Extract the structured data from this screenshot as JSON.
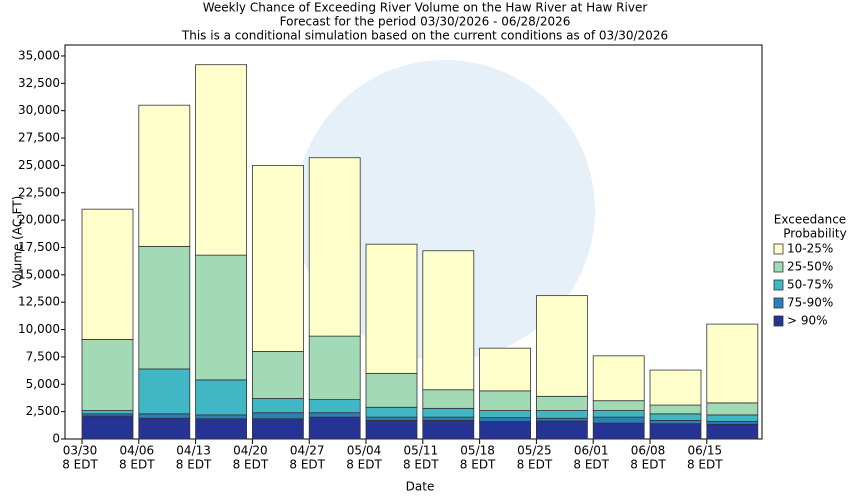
{
  "chart_data": {
    "type": "stacked_bar",
    "title": "Weekly Chance of Exceeding River Volume on the Haw River at Haw River",
    "subtitle": "Forecast for the period 03/30/2026 - 06/28/2026",
    "note": "This is a conditional simulation based on the current conditions as of 03/30/2026",
    "y_label": "Volume (AC-FT)",
    "x_label": "Date",
    "categories": [
      "03/30",
      "04/06",
      "04/13",
      "04/20",
      "04/27",
      "05/04",
      "05/11",
      "05/18",
      "05/25",
      "06/01",
      "06/08",
      "06/15"
    ],
    "category_sublabel": "8 EDT",
    "legend_title": [
      "Exceedance",
      "Probability"
    ],
    "legend": "right",
    "series": [
      {
        "name": "> 90%",
        "color": "#253494",
        "values": [
          2100,
          1900,
          1850,
          1850,
          2000,
          1700,
          1700,
          1600,
          1650,
          1450,
          1400,
          1350
        ]
      },
      {
        "name": "75-90%",
        "color": "#2c7fb8",
        "values": [
          200,
          400,
          350,
          550,
          400,
          300,
          300,
          350,
          250,
          550,
          300,
          250
        ]
      },
      {
        "name": "50-75%",
        "color": "#41b6c4",
        "values": [
          300,
          4100,
          3200,
          1300,
          1200,
          900,
          800,
          650,
          700,
          600,
          600,
          600
        ]
      },
      {
        "name": "25-50%",
        "color": "#a1dab4",
        "values": [
          6500,
          11200,
          11400,
          4300,
          5800,
          3100,
          1700,
          1800,
          1300,
          900,
          800,
          1100
        ]
      },
      {
        "name": "10-25%",
        "color": "#ffffcc",
        "values": [
          11900,
          12900,
          17400,
          17000,
          16300,
          11800,
          12700,
          3900,
          9200,
          4100,
          3200,
          7200
        ]
      }
    ],
    "ylim": [
      0,
      36000
    ],
    "yticks": [
      0,
      {
        "value": 2500,
        "label": "2,500"
      },
      {
        "value": 5000,
        "label": "5,000"
      },
      {
        "value": 7500,
        "label": "7,500"
      },
      {
        "value": 10000,
        "label": "10,000"
      },
      {
        "value": 12500,
        "label": "12,500"
      },
      {
        "value": 15000,
        "label": "15,000"
      },
      {
        "value": 17500,
        "label": "17,500"
      },
      {
        "value": 20000,
        "label": "20,000"
      },
      {
        "value": 22500,
        "label": "22,500"
      },
      {
        "value": 25000,
        "label": "25,000"
      },
      {
        "value": 27500,
        "label": "27,500"
      },
      {
        "value": 30000,
        "label": "30,000"
      },
      {
        "value": 32500,
        "label": "32,500"
      },
      {
        "value": 35000,
        "label": "35,000"
      }
    ]
  }
}
